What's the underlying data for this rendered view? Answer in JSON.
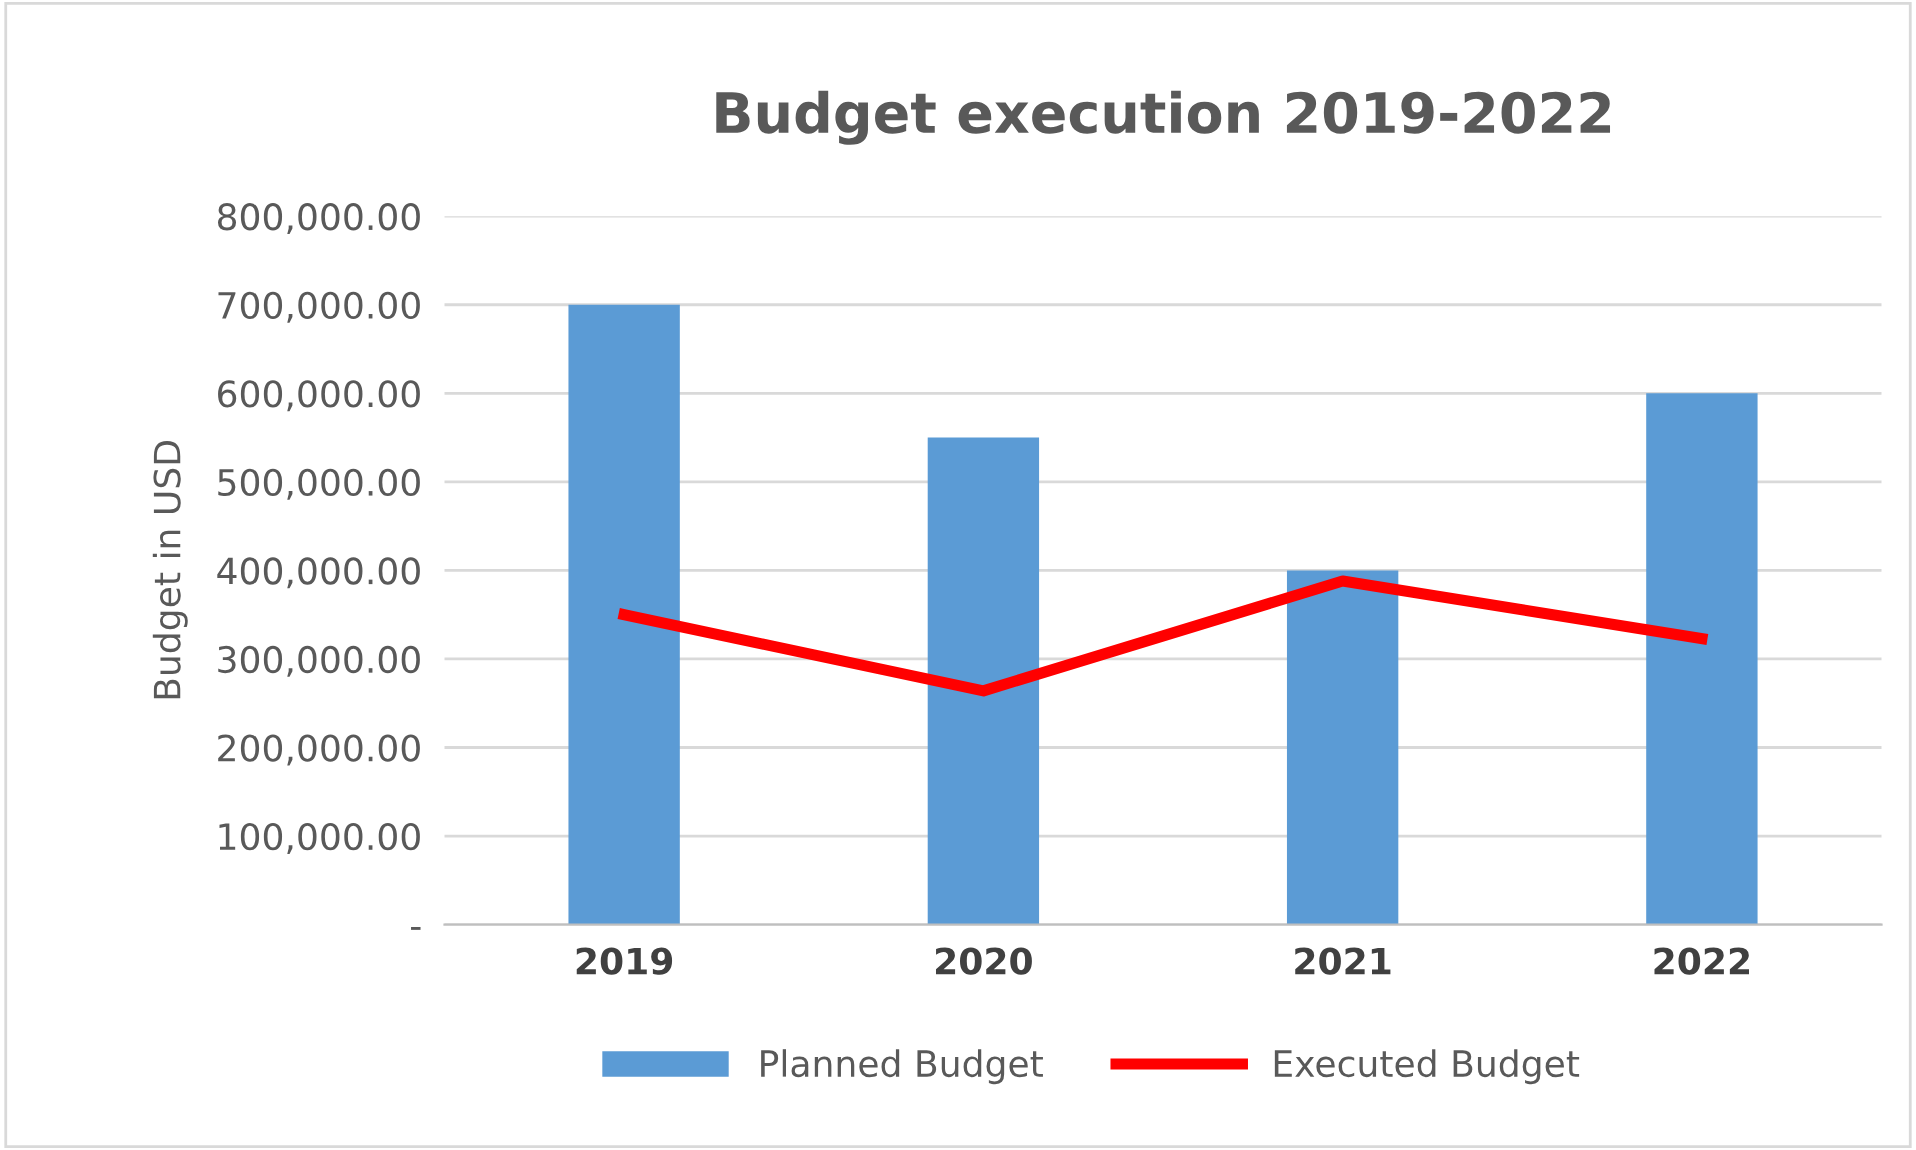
{
  "chart_data": {
    "type": "bar",
    "title": "Budget execution 2019-2022",
    "ylabel": "Budget in USD",
    "categories": [
      "2019",
      "2020",
      "2021",
      "2022"
    ],
    "series": [
      {
        "name": "Planned Budget",
        "color": "#5b9bd5",
        "values": [
          700000,
          550000,
          400000,
          600000
        ]
      },
      {
        "name": "Executed Budget",
        "type": "line",
        "color": "#ff0000",
        "values": [
          350000,
          264000,
          388000,
          323000
        ]
      }
    ],
    "ylim": [
      0,
      800000
    ],
    "yticks": [
      {
        "value": 0,
        "label": "-"
      },
      {
        "value": 100000,
        "label": "100,000.00"
      },
      {
        "value": 200000,
        "label": "200,000.00"
      },
      {
        "value": 300000,
        "label": "300,000.00"
      },
      {
        "value": 400000,
        "label": "400,000.00"
      },
      {
        "value": 500000,
        "label": "500,000.00"
      },
      {
        "value": 600000,
        "label": "600,000.00"
      },
      {
        "value": 700000,
        "label": "700,000.00"
      },
      {
        "value": 800000,
        "label": "800,000.00"
      }
    ],
    "grid": "y",
    "legend": "bottom",
    "marker": "none",
    "line_style": "solid"
  }
}
